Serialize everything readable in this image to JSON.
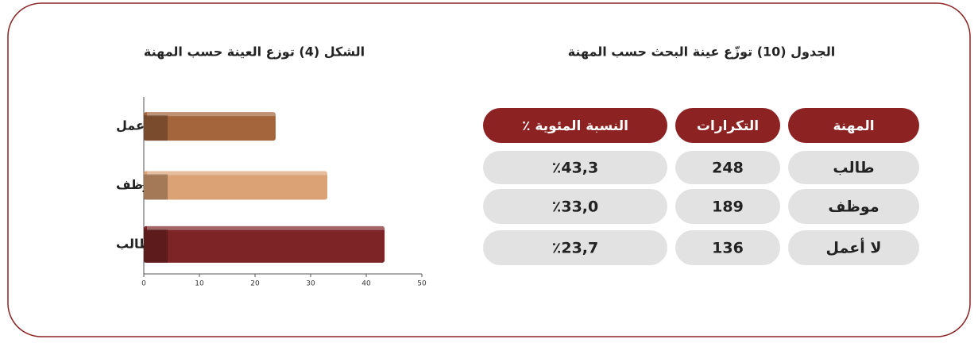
{
  "table": {
    "title": "الجدول (10) توزّع عينة البحث حسب المهنة",
    "headers": [
      "المهنة",
      "التكرارات",
      "النسبة المئوية ٪"
    ],
    "rows": [
      [
        "طالب",
        248,
        "٪43,3"
      ],
      [
        "موظف",
        189,
        "٪33,0"
      ],
      [
        "لا أعمل",
        136,
        "٪23,7"
      ]
    ]
  },
  "chart_data": {
    "type": "hbar",
    "title": "الشكل (4) توزع العينة حسب المهنة",
    "categories": [
      "لا أعمل",
      "موظف",
      "طالب"
    ],
    "values": [
      23.7,
      33.0,
      43.3
    ],
    "colors": [
      "#a4643c",
      "#dba275",
      "#7c2426"
    ],
    "xlim": [
      0,
      50
    ],
    "xticks": [
      0,
      10,
      20,
      30,
      40,
      50
    ]
  }
}
